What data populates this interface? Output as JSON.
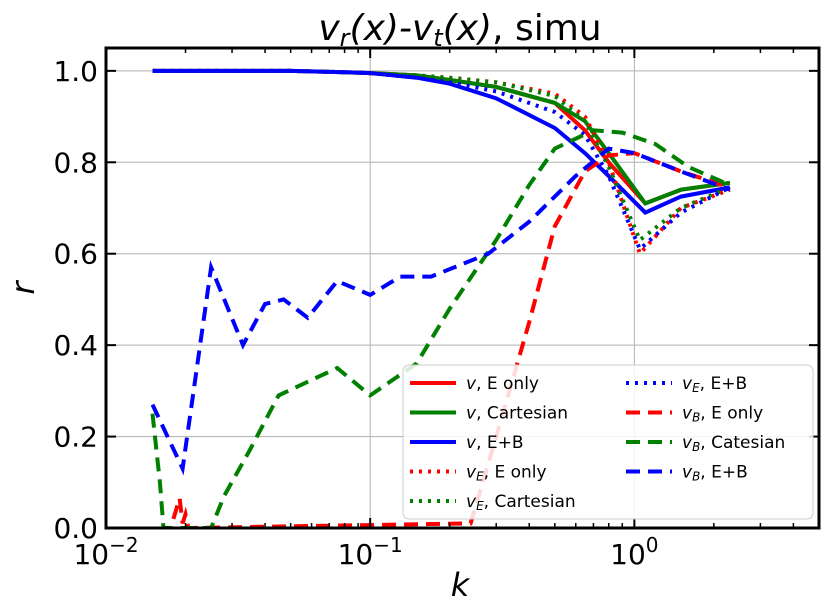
{
  "chart_data": {
    "type": "line",
    "title": "v_r(x)-v_t(x), simu",
    "title_parts": [
      {
        "text": "v",
        "italic": true
      },
      {
        "text": "r",
        "italic": true,
        "sub": true
      },
      {
        "text": "(",
        "italic": true
      },
      {
        "text": "x",
        "italic": true
      },
      {
        "text": ")-",
        "italic": true
      },
      {
        "text": "v",
        "italic": true
      },
      {
        "text": "t",
        "italic": true,
        "sub": true
      },
      {
        "text": "(",
        "italic": true
      },
      {
        "text": "x",
        "italic": true
      },
      {
        "text": ")",
        "italic": true
      },
      {
        "text": ", simu",
        "italic": false
      }
    ],
    "xlabel": "k",
    "ylabel": "r",
    "xscale": "log",
    "xlim": [
      0.01,
      5.0
    ],
    "ylim": [
      0.0,
      1.05
    ],
    "grid": true,
    "x_ticks": [
      {
        "value": 0.01,
        "base": "10",
        "exp": "−2"
      },
      {
        "value": 0.1,
        "base": "10",
        "exp": "−1"
      },
      {
        "value": 1.0,
        "base": "10",
        "exp": "0"
      }
    ],
    "y_ticks": [
      {
        "value": 0.0,
        "label": "0.0"
      },
      {
        "value": 0.2,
        "label": "0.2"
      },
      {
        "value": 0.4,
        "label": "0.4"
      },
      {
        "value": 0.6,
        "label": "0.6"
      },
      {
        "value": 0.8,
        "label": "0.8"
      },
      {
        "value": 1.0,
        "label": "1.0"
      }
    ],
    "legend_position": "lower-right",
    "series": [
      {
        "name": "v, E only",
        "legend_parts": [
          {
            "text": "v",
            "italic": true
          },
          {
            "text": ", E only"
          }
        ],
        "color": "#ff0000",
        "dash": "solid",
        "x": [
          0.015,
          0.02,
          0.03,
          0.05,
          0.08,
          0.1,
          0.15,
          0.2,
          0.3,
          0.5,
          0.65,
          0.8,
          1.1,
          1.5,
          2.3
        ],
        "y": [
          1.0,
          1.0,
          1.0,
          1.0,
          0.997,
          0.995,
          0.99,
          0.98,
          0.965,
          0.93,
          0.87,
          0.8,
          0.71,
          0.74,
          0.755
        ]
      },
      {
        "name": "v, Cartesian",
        "legend_parts": [
          {
            "text": "v",
            "italic": true
          },
          {
            "text": ", Cartesian"
          }
        ],
        "color": "#008000",
        "dash": "solid",
        "x": [
          0.015,
          0.02,
          0.03,
          0.05,
          0.08,
          0.1,
          0.15,
          0.2,
          0.3,
          0.5,
          0.65,
          0.8,
          1.1,
          1.5,
          2.3
        ],
        "y": [
          1.0,
          1.0,
          1.0,
          1.0,
          0.997,
          0.995,
          0.99,
          0.98,
          0.965,
          0.93,
          0.89,
          0.82,
          0.71,
          0.74,
          0.755
        ]
      },
      {
        "name": "v, E+B",
        "legend_parts": [
          {
            "text": "v",
            "italic": true
          },
          {
            "text": ", E+B"
          }
        ],
        "color": "#0000ff",
        "dash": "solid",
        "x": [
          0.015,
          0.02,
          0.03,
          0.05,
          0.08,
          0.1,
          0.15,
          0.2,
          0.3,
          0.5,
          0.65,
          0.8,
          1.1,
          1.5,
          2.3
        ],
        "y": [
          1.0,
          1.0,
          1.0,
          1.0,
          0.997,
          0.995,
          0.985,
          0.972,
          0.94,
          0.875,
          0.82,
          0.77,
          0.69,
          0.725,
          0.745
        ]
      },
      {
        "name": "v_E, E only",
        "legend_parts": [
          {
            "text": "v",
            "italic": true
          },
          {
            "text": "E",
            "italic": true,
            "sub": true
          },
          {
            "text": ", E only"
          }
        ],
        "color": "#ff0000",
        "dash": "dot",
        "x": [
          0.015,
          0.02,
          0.03,
          0.05,
          0.08,
          0.1,
          0.15,
          0.2,
          0.3,
          0.5,
          0.65,
          0.8,
          1.05,
          1.5,
          2.3
        ],
        "y": [
          1.0,
          1.0,
          1.0,
          1.0,
          0.997,
          0.995,
          0.99,
          0.985,
          0.975,
          0.95,
          0.9,
          0.8,
          0.6,
          0.7,
          0.74
        ]
      },
      {
        "name": "v_E, Cartesian",
        "legend_parts": [
          {
            "text": "v",
            "italic": true
          },
          {
            "text": "E",
            "italic": true,
            "sub": true
          },
          {
            "text": ", Cartesian"
          }
        ],
        "color": "#008000",
        "dash": "dot",
        "x": [
          0.015,
          0.02,
          0.03,
          0.05,
          0.08,
          0.1,
          0.15,
          0.2,
          0.3,
          0.5,
          0.65,
          0.8,
          1.05,
          1.5,
          2.3
        ],
        "y": [
          1.0,
          1.0,
          1.0,
          1.0,
          0.997,
          0.995,
          0.99,
          0.985,
          0.975,
          0.945,
          0.89,
          0.79,
          0.63,
          0.7,
          0.745
        ]
      },
      {
        "name": "v_E, E+B",
        "legend_parts": [
          {
            "text": "v",
            "italic": true
          },
          {
            "text": "E",
            "italic": true,
            "sub": true
          },
          {
            "text": ", E+B"
          }
        ],
        "color": "#0000ff",
        "dash": "dot",
        "x": [
          0.015,
          0.02,
          0.03,
          0.05,
          0.08,
          0.1,
          0.15,
          0.2,
          0.3,
          0.5,
          0.65,
          0.8,
          1.05,
          1.5,
          2.3
        ],
        "y": [
          1.0,
          1.0,
          1.0,
          1.0,
          0.997,
          0.995,
          0.985,
          0.975,
          0.955,
          0.91,
          0.86,
          0.77,
          0.61,
          0.69,
          0.745
        ]
      },
      {
        "name": "v_B, E only",
        "legend_parts": [
          {
            "text": "v",
            "italic": true
          },
          {
            "text": "B",
            "italic": true,
            "sub": true
          },
          {
            "text": ", E only"
          }
        ],
        "color": "#ff0000",
        "dash": "dash",
        "x": [
          0.018,
          0.019,
          0.0195,
          0.02,
          0.0205,
          0.24,
          0.3,
          0.4,
          0.5,
          0.65,
          0.8,
          1.0,
          1.5,
          2.3
        ],
        "y": [
          0.02,
          0.065,
          0.01,
          0.03,
          0.0,
          0.01,
          0.2,
          0.45,
          0.66,
          0.78,
          0.815,
          0.82,
          0.78,
          0.745
        ]
      },
      {
        "name": "v_B, Catesian",
        "legend_parts": [
          {
            "text": "v",
            "italic": true
          },
          {
            "text": "B",
            "italic": true,
            "sub": true
          },
          {
            "text": ", Catesian"
          }
        ],
        "color": "#008000",
        "dash": "dash",
        "x": [
          0.015,
          0.016,
          0.0165,
          0.025,
          0.028,
          0.035,
          0.045,
          0.075,
          0.1,
          0.15,
          0.2,
          0.3,
          0.4,
          0.5,
          0.7,
          0.9,
          1.2,
          1.6,
          2.3
        ],
        "y": [
          0.25,
          0.1,
          0.0,
          0.0,
          0.07,
          0.17,
          0.29,
          0.35,
          0.29,
          0.36,
          0.48,
          0.63,
          0.75,
          0.83,
          0.87,
          0.865,
          0.84,
          0.79,
          0.75
        ]
      },
      {
        "name": "v_B, E+B",
        "legend_parts": [
          {
            "text": "v",
            "italic": true
          },
          {
            "text": "B",
            "italic": true,
            "sub": true
          },
          {
            "text": ", E+B"
          }
        ],
        "color": "#0000ff",
        "dash": "dash",
        "x": [
          0.015,
          0.0195,
          0.025,
          0.033,
          0.04,
          0.047,
          0.058,
          0.075,
          0.1,
          0.13,
          0.17,
          0.28,
          0.4,
          0.6,
          0.8,
          1.0,
          1.5,
          2.3
        ],
        "y": [
          0.27,
          0.13,
          0.57,
          0.4,
          0.49,
          0.5,
          0.46,
          0.54,
          0.51,
          0.55,
          0.55,
          0.6,
          0.67,
          0.77,
          0.83,
          0.82,
          0.78,
          0.74
        ]
      }
    ]
  }
}
